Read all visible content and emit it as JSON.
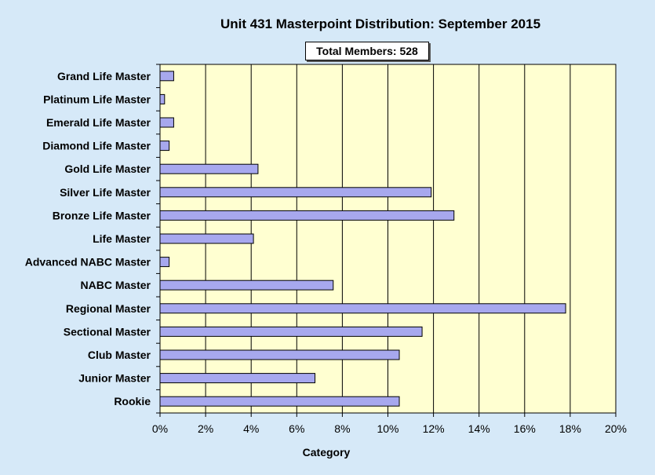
{
  "chart_data": {
    "type": "bar",
    "orientation": "horizontal",
    "title": "Unit 431 Masterpoint Distribution: September 2015",
    "annotation": "Total Members: 528",
    "xlabel": "Category",
    "ylabel": "",
    "xlim": [
      0,
      20
    ],
    "x_ticks": [
      "0%",
      "2%",
      "4%",
      "6%",
      "8%",
      "10%",
      "12%",
      "14%",
      "16%",
      "18%",
      "20%"
    ],
    "grid": "vertical gridlines on",
    "legend": "none",
    "categories": [
      "Grand Life Master",
      "Platinum Life Master",
      "Emerald Life Master",
      "Diamond Life Master",
      "Gold Life Master",
      "Silver Life Master",
      "Bronze Life Master",
      "Life Master",
      "Advanced NABC Master",
      "NABC Master",
      "Regional Master",
      "Sectional Master",
      "Club Master",
      "Junior Master",
      "Rookie"
    ],
    "values": [
      0.6,
      0.2,
      0.6,
      0.4,
      4.3,
      11.9,
      12.9,
      4.1,
      0.4,
      7.6,
      17.8,
      11.5,
      10.5,
      6.8,
      10.5
    ],
    "colors": {
      "plot_background": "#ffffd1",
      "page_background": "#d6e9f8",
      "bar_fill": "#a7a8ee",
      "bar_stroke": "#000000"
    }
  }
}
